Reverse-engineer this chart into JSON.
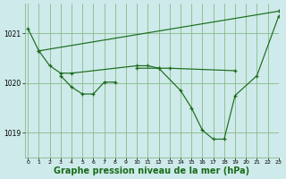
{
  "background_color": "#ceeaea",
  "grid_color": "#88bb88",
  "line_color": "#1a6b1a",
  "xlabel": "Graphe pression niveau de la mer (hPa)",
  "xlabel_fontsize": 7.0,
  "ylim": [
    1018.5,
    1021.6
  ],
  "xlim": [
    -0.3,
    23
  ],
  "yticks": [
    1019,
    1020,
    1021
  ],
  "xticks": [
    0,
    1,
    2,
    3,
    4,
    5,
    6,
    7,
    8,
    9,
    10,
    11,
    12,
    13,
    14,
    15,
    16,
    17,
    18,
    19,
    20,
    21,
    22,
    23
  ],
  "series": [
    {
      "x": [
        0,
        1,
        23
      ],
      "y": [
        1021.1,
        1020.65,
        1021.45
      ]
    },
    {
      "x": [
        1,
        2,
        3,
        4,
        10,
        11,
        12,
        13,
        19
      ],
      "y": [
        1020.65,
        1020.35,
        1020.2,
        1020.2,
        1020.35,
        1020.35,
        1020.3,
        1020.3,
        1020.25
      ]
    },
    {
      "x": [
        3,
        4,
        5,
        6,
        7,
        8
      ],
      "y": [
        1020.15,
        1019.92,
        1019.78,
        1019.78,
        1020.02,
        1020.02
      ]
    },
    {
      "x": [
        10,
        12,
        14,
        15,
        16,
        17,
        18,
        19,
        21,
        23
      ],
      "y": [
        1020.3,
        1020.3,
        1019.85,
        1019.5,
        1019.05,
        1018.87,
        1018.87,
        1019.75,
        1020.15,
        1021.35
      ]
    }
  ]
}
